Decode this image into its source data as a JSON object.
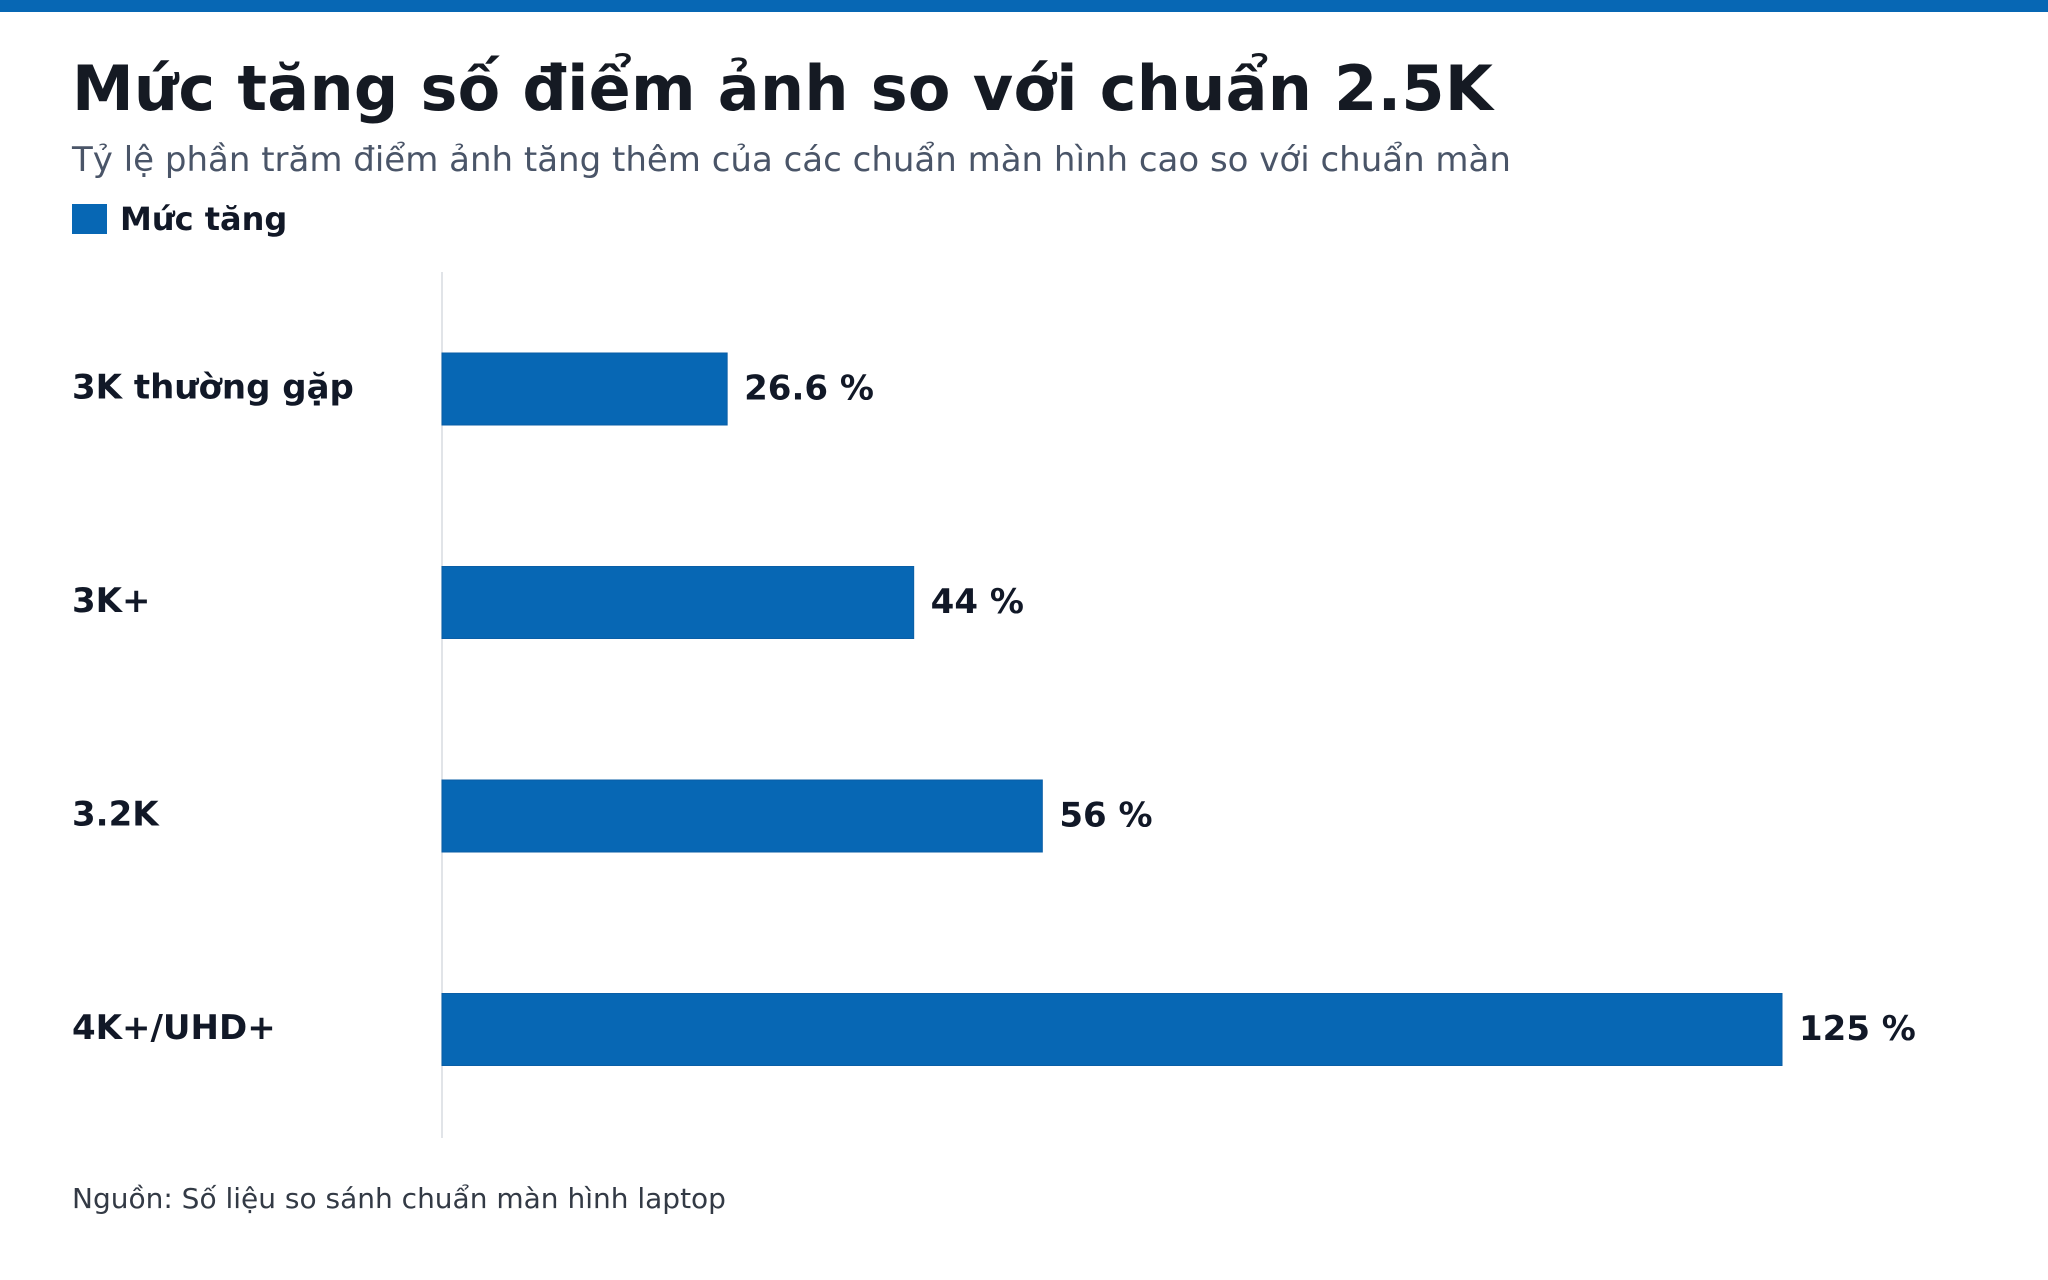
{
  "colors": {
    "accent": "#0767b4",
    "axis": "#d7dbe0",
    "text": "#111827",
    "subtitle": "#4a5568"
  },
  "header": {
    "title": "Mức tăng số điểm ảnh so với chuẩn 2.5K",
    "subtitle": "Tỷ lệ phần trăm điểm ảnh tăng thêm của các chuẩn màn hình cao so với chuẩn màn"
  },
  "legend": {
    "label": "Mức tăng"
  },
  "footer": {
    "source": "Nguồn: Số liệu so sánh chuẩn màn hình laptop"
  },
  "chart_data": {
    "type": "bar",
    "orientation": "horizontal",
    "title": "Mức tăng số điểm ảnh so với chuẩn 2.5K",
    "subtitle": "Tỷ lệ phần trăm điểm ảnh tăng thêm của các chuẩn màn hình cao so với chuẩn màn",
    "categories": [
      "3K thường gặp",
      "3K+",
      "3.2K",
      "4K+/UHD+"
    ],
    "series": [
      {
        "name": "Mức tăng",
        "values": [
          26.6,
          44,
          56,
          125
        ],
        "labels": [
          "26.6 %",
          "44 %",
          "56 %",
          "125 %"
        ],
        "color": "#0767b4"
      }
    ],
    "xlim": [
      0,
      125
    ],
    "grid": false,
    "legend_position": "top-left"
  }
}
